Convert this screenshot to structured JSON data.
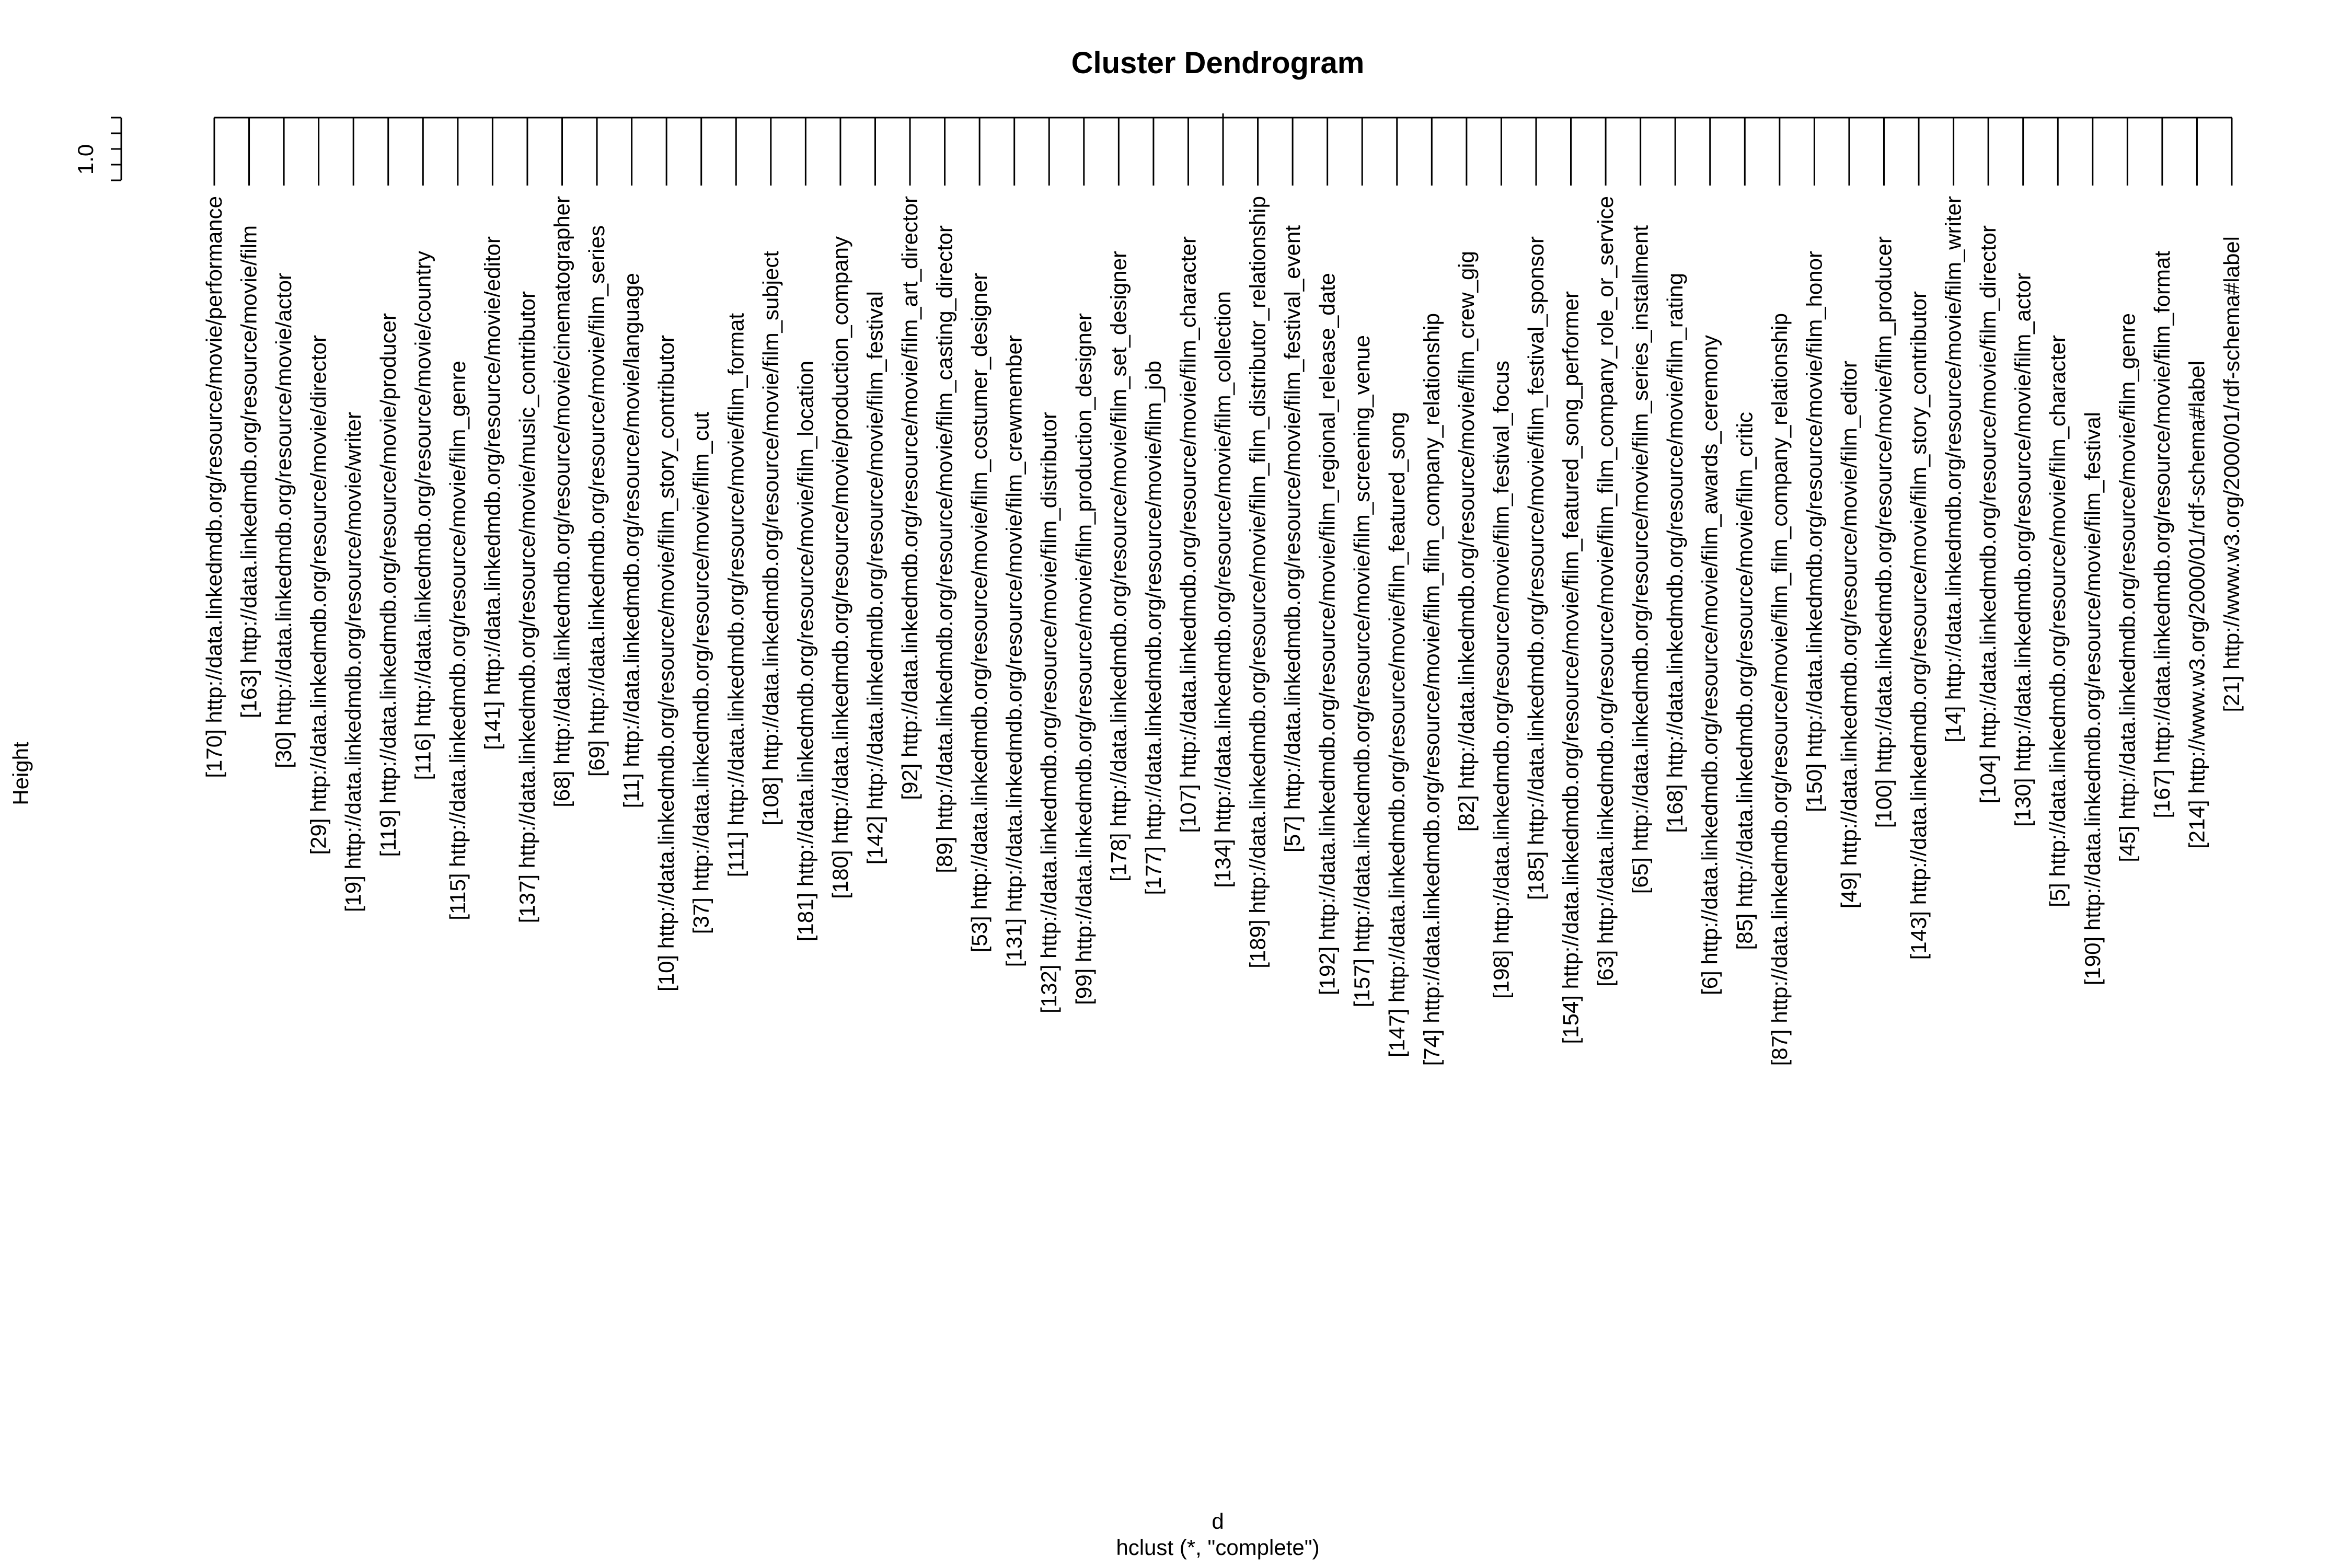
{
  "chart_data": {
    "type": "dendrogram",
    "title": "Cluster Dendrogram",
    "xlabel": "d",
    "sublabel": "hclust (*, \"complete\")",
    "ylabel": "Height",
    "y_ticks": [
      1.0
    ],
    "ylim": [
      0.985,
      1.0
    ],
    "merge_height": 1.0,
    "leaf_height": 0.99,
    "leaf_labels": [
      "[170] http://data.linkedmdb.org/resource/movie/performance",
      "[163] http://data.linkedmdb.org/resource/movie/film",
      "[30] http://data.linkedmdb.org/resource/movie/actor",
      "[29] http://data.linkedmdb.org/resource/movie/director",
      "[19] http://data.linkedmdb.org/resource/movie/writer",
      "[119] http://data.linkedmdb.org/resource/movie/producer",
      "[116] http://data.linkedmdb.org/resource/movie/country",
      "[115] http://data.linkedmdb.org/resource/movie/film_genre",
      "[141] http://data.linkedmdb.org/resource/movie/editor",
      "[137] http://data.linkedmdb.org/resource/movie/music_contributor",
      "[68] http://data.linkedmdb.org/resource/movie/cinematographer",
      "[69] http://data.linkedmdb.org/resource/movie/film_series",
      "[11] http://data.linkedmdb.org/resource/movie/language",
      "[10] http://data.linkedmdb.org/resource/movie/film_story_contributor",
      "[37] http://data.linkedmdb.org/resource/movie/film_cut",
      "[111] http://data.linkedmdb.org/resource/movie/film_format",
      "[108] http://data.linkedmdb.org/resource/movie/film_subject",
      "[181] http://data.linkedmdb.org/resource/movie/film_location",
      "[180] http://data.linkedmdb.org/resource/movie/production_company",
      "[142] http://data.linkedmdb.org/resource/movie/film_festival",
      "[92] http://data.linkedmdb.org/resource/movie/film_art_director",
      "[89] http://data.linkedmdb.org/resource/movie/film_casting_director",
      "[53] http://data.linkedmdb.org/resource/movie/film_costumer_designer",
      "[131] http://data.linkedmdb.org/resource/movie/film_crewmember",
      "[132] http://data.linkedmdb.org/resource/movie/film_distributor",
      "[99] http://data.linkedmdb.org/resource/movie/film_production_designer",
      "[178] http://data.linkedmdb.org/resource/movie/film_set_designer",
      "[177] http://data.linkedmdb.org/resource/movie/film_job",
      "[107] http://data.linkedmdb.org/resource/movie/film_character",
      "[134] http://data.linkedmdb.org/resource/movie/film_collection",
      "[189] http://data.linkedmdb.org/resource/movie/film_film_distributor_relationship",
      "[57] http://data.linkedmdb.org/resource/movie/film_festival_event",
      "[192] http://data.linkedmdb.org/resource/movie/film_regional_release_date",
      "[157] http://data.linkedmdb.org/resource/movie/film_screening_venue",
      "[147] http://data.linkedmdb.org/resource/movie/film_featured_song",
      "[74] http://data.linkedmdb.org/resource/movie/film_film_company_relationship",
      "[82] http://data.linkedmdb.org/resource/movie/film_crew_gig",
      "[198] http://data.linkedmdb.org/resource/movie/film_festival_focus",
      "[185] http://data.linkedmdb.org/resource/movie/film_festival_sponsor",
      "[154] http://data.linkedmdb.org/resource/movie/film_featured_song_performer",
      "[63] http://data.linkedmdb.org/resource/movie/film_film_company_role_or_service",
      "[65] http://data.linkedmdb.org/resource/movie/film_series_installment",
      "[168] http://data.linkedmdb.org/resource/movie/film_rating",
      "[6] http://data.linkedmdb.org/resource/movie/film_awards_ceremony",
      "[85] http://data.linkedmdb.org/resource/movie/film_critic",
      "[87] http://data.linkedmdb.org/resource/movie/film_film_company_relationship",
      "[150] http://data.linkedmdb.org/resource/movie/film_honor",
      "[49] http://data.linkedmdb.org/resource/movie/film_editor",
      "[100] http://data.linkedmdb.org/resource/movie/film_producer",
      "[143] http://data.linkedmdb.org/resource/movie/film_story_contributor",
      "[14] http://data.linkedmdb.org/resource/movie/film_writer",
      "[104] http://data.linkedmdb.org/resource/movie/film_director",
      "[130] http://data.linkedmdb.org/resource/movie/film_actor",
      "[5] http://data.linkedmdb.org/resource/movie/film_character",
      "[190] http://data.linkedmdb.org/resource/movie/film_festival",
      "[45] http://data.linkedmdb.org/resource/movie/film_genre",
      "[167] http://data.linkedmdb.org/resource/movie/film_format",
      "[214] http://www.w3.org/2000/01/rdf-schema#label",
      "[21] http://www.w3.org/2000/01/rdf-schema#label"
    ]
  }
}
